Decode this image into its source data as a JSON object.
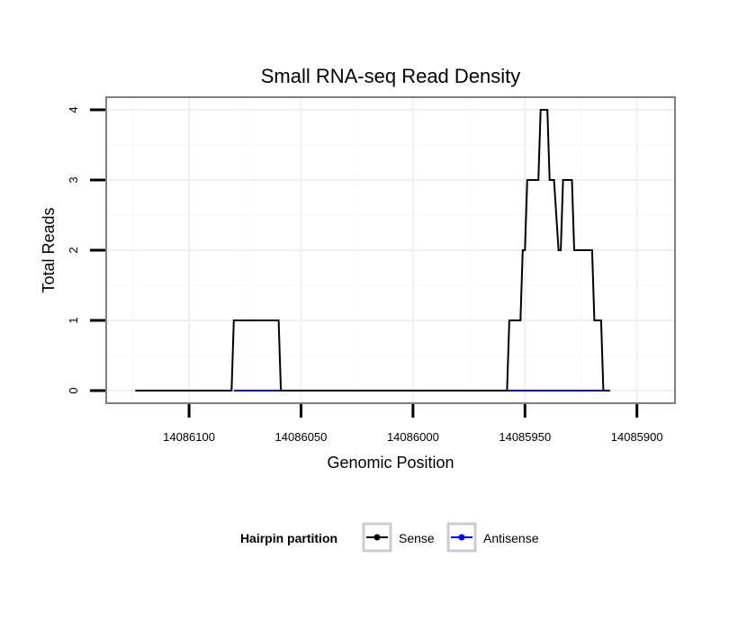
{
  "chart_data": {
    "type": "line",
    "title": "Small RNA-seq Read Density",
    "xlabel": "Genomic Position",
    "ylabel": "Total Reads",
    "xlim": [
      14086137,
      14085883
    ],
    "ylim": [
      -0.18,
      4.18
    ],
    "x_reversed": true,
    "grid": true,
    "x_ticks": [
      14086100,
      14086050,
      14086000,
      14085950,
      14085900
    ],
    "x_tick_labels": [
      "14086100",
      "14086050",
      "14086000",
      "14085950",
      "14085900"
    ],
    "y_ticks": [
      0,
      1,
      2,
      3,
      4
    ],
    "y_tick_labels": [
      "0",
      "1",
      "2",
      "3",
      "4"
    ],
    "legend": {
      "title": "Hairpin partition",
      "position": "bottom",
      "entries": [
        "Sense",
        "Antisense"
      ]
    },
    "series": [
      {
        "name": "Sense",
        "color": "#000000",
        "points": [
          [
            14086124,
            0
          ],
          [
            14086081,
            0
          ],
          [
            14086080,
            1
          ],
          [
            14086060,
            1
          ],
          [
            14086059,
            0
          ],
          [
            14085958,
            0
          ],
          [
            14085957,
            1
          ],
          [
            14085952,
            1
          ],
          [
            14085951,
            2
          ],
          [
            14085950,
            2
          ],
          [
            14085949,
            3
          ],
          [
            14085944,
            3
          ],
          [
            14085943,
            4
          ],
          [
            14085940,
            4
          ],
          [
            14085939,
            3
          ],
          [
            14085937,
            3
          ],
          [
            14085935,
            2
          ],
          [
            14085934,
            2
          ],
          [
            14085933,
            3
          ],
          [
            14085929,
            3
          ],
          [
            14085928,
            2
          ],
          [
            14085920,
            2
          ],
          [
            14085919,
            1
          ],
          [
            14085916,
            1
          ],
          [
            14085915,
            0
          ],
          [
            14085912,
            0
          ]
        ]
      },
      {
        "name": "Antisense",
        "color": "#0000ff",
        "points": [
          [
            14086080,
            0
          ],
          [
            14086059,
            0
          ],
          [
            14085958,
            0
          ],
          [
            14085914,
            0
          ]
        ]
      }
    ]
  }
}
